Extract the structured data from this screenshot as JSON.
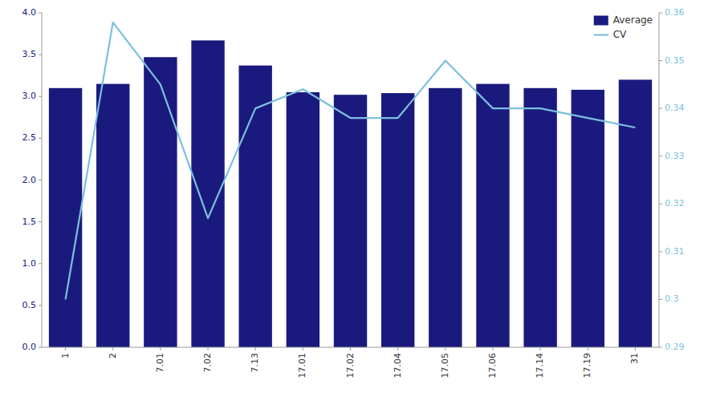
{
  "chart_data": {
    "type": "bar",
    "categories": [
      "1",
      "2",
      "7.01",
      "7.02",
      "7.13",
      "17.01",
      "17.02",
      "17.04",
      "17.05",
      "17.06",
      "17.14",
      "17.19",
      "31"
    ],
    "series": [
      {
        "name": "Average",
        "type": "bar",
        "color": "#1a1a7e",
        "values": [
          3.1,
          3.15,
          3.47,
          3.67,
          3.37,
          3.05,
          3.02,
          3.04,
          3.1,
          3.15,
          3.1,
          3.08,
          3.2
        ]
      },
      {
        "name": "CV",
        "type": "line",
        "color": "#7dbfdd",
        "axis": "y2",
        "values": [
          0.3,
          0.358,
          0.345,
          0.317,
          0.34,
          0.344,
          0.338,
          0.338,
          0.35,
          0.34,
          0.34,
          0.338,
          0.336
        ]
      }
    ],
    "ylim": [
      0,
      4.0
    ],
    "yticks": [
      {
        "value": 0,
        "label": "0.0"
      },
      0.5,
      {
        "value": 1.0,
        "label": "1.0"
      },
      1.5,
      {
        "value": 2.0,
        "label": "2.0"
      },
      2.5,
      {
        "value": 3.0,
        "label": "3.0"
      },
      3.5,
      {
        "value": 4.0,
        "label": "4.0"
      }
    ],
    "y2lim": [
      0.29,
      0.36
    ],
    "y2ticks": [
      0.29,
      0.3,
      0.31,
      0.32,
      0.33,
      0.34,
      0.35,
      0.36
    ],
    "grid": false,
    "legend": "upper right"
  }
}
